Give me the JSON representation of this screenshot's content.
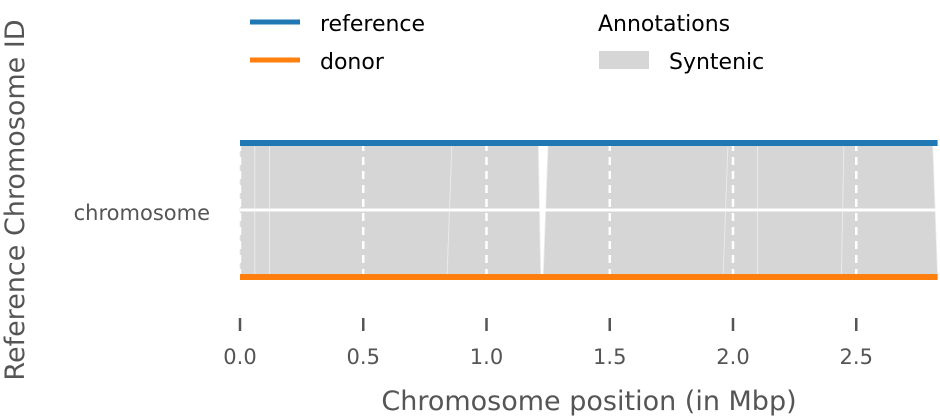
{
  "chart_data": {
    "type": "synteny",
    "title": "",
    "xlabel": "Chromosome position (in Mbp)",
    "ylabel": "Reference Chromosome ID",
    "xlim": [
      0.0,
      2.83
    ],
    "x_ticks": [
      0.0,
      0.5,
      1.0,
      1.5,
      2.0,
      2.5
    ],
    "x_tick_labels": [
      "0.0",
      "0.5",
      "1.0",
      "1.5",
      "2.0",
      "2.5"
    ],
    "y_categories": [
      "chromosome"
    ],
    "legend": {
      "placement": "top",
      "series": [
        {
          "name": "reference",
          "color": "#1f77b4"
        },
        {
          "name": "donor",
          "color": "#ff7f0e"
        }
      ],
      "annotations_title": "Annotations",
      "annotations": [
        {
          "name": "Syntenic",
          "color": "#d6d6d6"
        }
      ]
    },
    "series": [
      {
        "name": "reference",
        "start": 0.0,
        "end": 2.83,
        "color": "#1f77b4"
      },
      {
        "name": "donor",
        "start": 0.0,
        "end": 2.83,
        "color": "#ff7f0e"
      }
    ],
    "syntenic_blocks": [
      {
        "ref": [
          0.0,
          0.06
        ],
        "donor": [
          0.0,
          0.06
        ]
      },
      {
        "ref": [
          0.06,
          0.12
        ],
        "donor": [
          0.06,
          0.12
        ]
      },
      {
        "ref": [
          0.12,
          0.86
        ],
        "donor": [
          0.12,
          0.84
        ]
      },
      {
        "ref": [
          0.86,
          1.21
        ],
        "donor": [
          0.84,
          1.22
        ]
      },
      {
        "ref": [
          1.25,
          1.98
        ],
        "donor": [
          1.23,
          1.96
        ]
      },
      {
        "ref": [
          1.98,
          2.1
        ],
        "donor": [
          1.96,
          2.1
        ]
      },
      {
        "ref": [
          2.1,
          2.45
        ],
        "donor": [
          2.1,
          2.44
        ]
      },
      {
        "ref": [
          2.45,
          2.81
        ],
        "donor": [
          2.44,
          2.83
        ]
      }
    ],
    "vertical_gridlines": [
      0.5,
      1.0,
      1.5,
      2.0,
      2.5
    ],
    "colors": {
      "reference": "#1f77b4",
      "donor": "#ff7f0e",
      "syntenic": "#d6d6d6",
      "text": "#555555",
      "tick": "#555555"
    }
  }
}
